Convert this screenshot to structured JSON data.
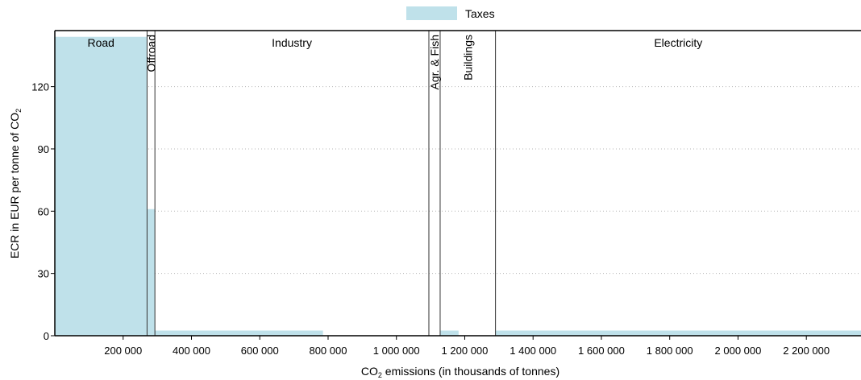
{
  "chart_data": {
    "type": "bar",
    "subtype": "variable-width step bars",
    "legend": {
      "position": "top-center",
      "entries": [
        {
          "name": "Taxes",
          "color": "#bfe1ea"
        }
      ]
    },
    "xlabel_main": "CO",
    "xlabel_sub": "2",
    "xlabel_rest": " emissions (in thousands of tonnes)",
    "ylabel_main": "ECR in EUR per tonne of CO",
    "ylabel_sub": "2",
    "xlim": [
      0,
      2360000
    ],
    "ylim": [
      0,
      147
    ],
    "grid": true,
    "x_ticks": [
      {
        "value": 200000,
        "label": "200 000"
      },
      {
        "value": 400000,
        "label": "400 000"
      },
      {
        "value": 600000,
        "label": "600 000"
      },
      {
        "value": 800000,
        "label": "800 000"
      },
      {
        "value": 1000000,
        "label": "1 000 000"
      },
      {
        "value": 1200000,
        "label": "1 200 000"
      },
      {
        "value": 1400000,
        "label": "1 400 000"
      },
      {
        "value": 1600000,
        "label": "1 600 000"
      },
      {
        "value": 1800000,
        "label": "1 800 000"
      },
      {
        "value": 2000000,
        "label": "2 000 000"
      },
      {
        "value": 2200000,
        "label": "2 200 000"
      }
    ],
    "y_ticks": [
      {
        "value": 0,
        "label": "0"
      },
      {
        "value": 30,
        "label": "30"
      },
      {
        "value": 60,
        "label": "60"
      },
      {
        "value": 90,
        "label": "90"
      },
      {
        "value": 120,
        "label": "120"
      }
    ],
    "sectors": [
      {
        "label": "Road",
        "start": 0,
        "end": 270000,
        "orientation": "horizontal"
      },
      {
        "label": "Offroad",
        "start": 270000,
        "end": 293000,
        "orientation": "vertical"
      },
      {
        "label": "Industry",
        "start": 293000,
        "end": 1095000,
        "orientation": "horizontal"
      },
      {
        "label": "Agr. & Fish",
        "start": 1095000,
        "end": 1128000,
        "orientation": "vertical"
      },
      {
        "label": "Buildings",
        "start": 1128000,
        "end": 1290000,
        "orientation": "vertical"
      },
      {
        "label": "Electricity",
        "start": 1290000,
        "end": 2360000,
        "orientation": "horizontal"
      }
    ],
    "series": [
      {
        "name": "Taxes",
        "color": "#bfe1ea",
        "bars": [
          {
            "x0": 0,
            "x1": 270000,
            "value": 144
          },
          {
            "x0": 270000,
            "x1": 293000,
            "value": 61
          },
          {
            "x0": 293000,
            "x1": 785000,
            "value": 2.5
          },
          {
            "x0": 1128000,
            "x1": 1182000,
            "value": 2.5
          },
          {
            "x0": 1290000,
            "x1": 2360000,
            "value": 2.5
          }
        ]
      }
    ]
  }
}
